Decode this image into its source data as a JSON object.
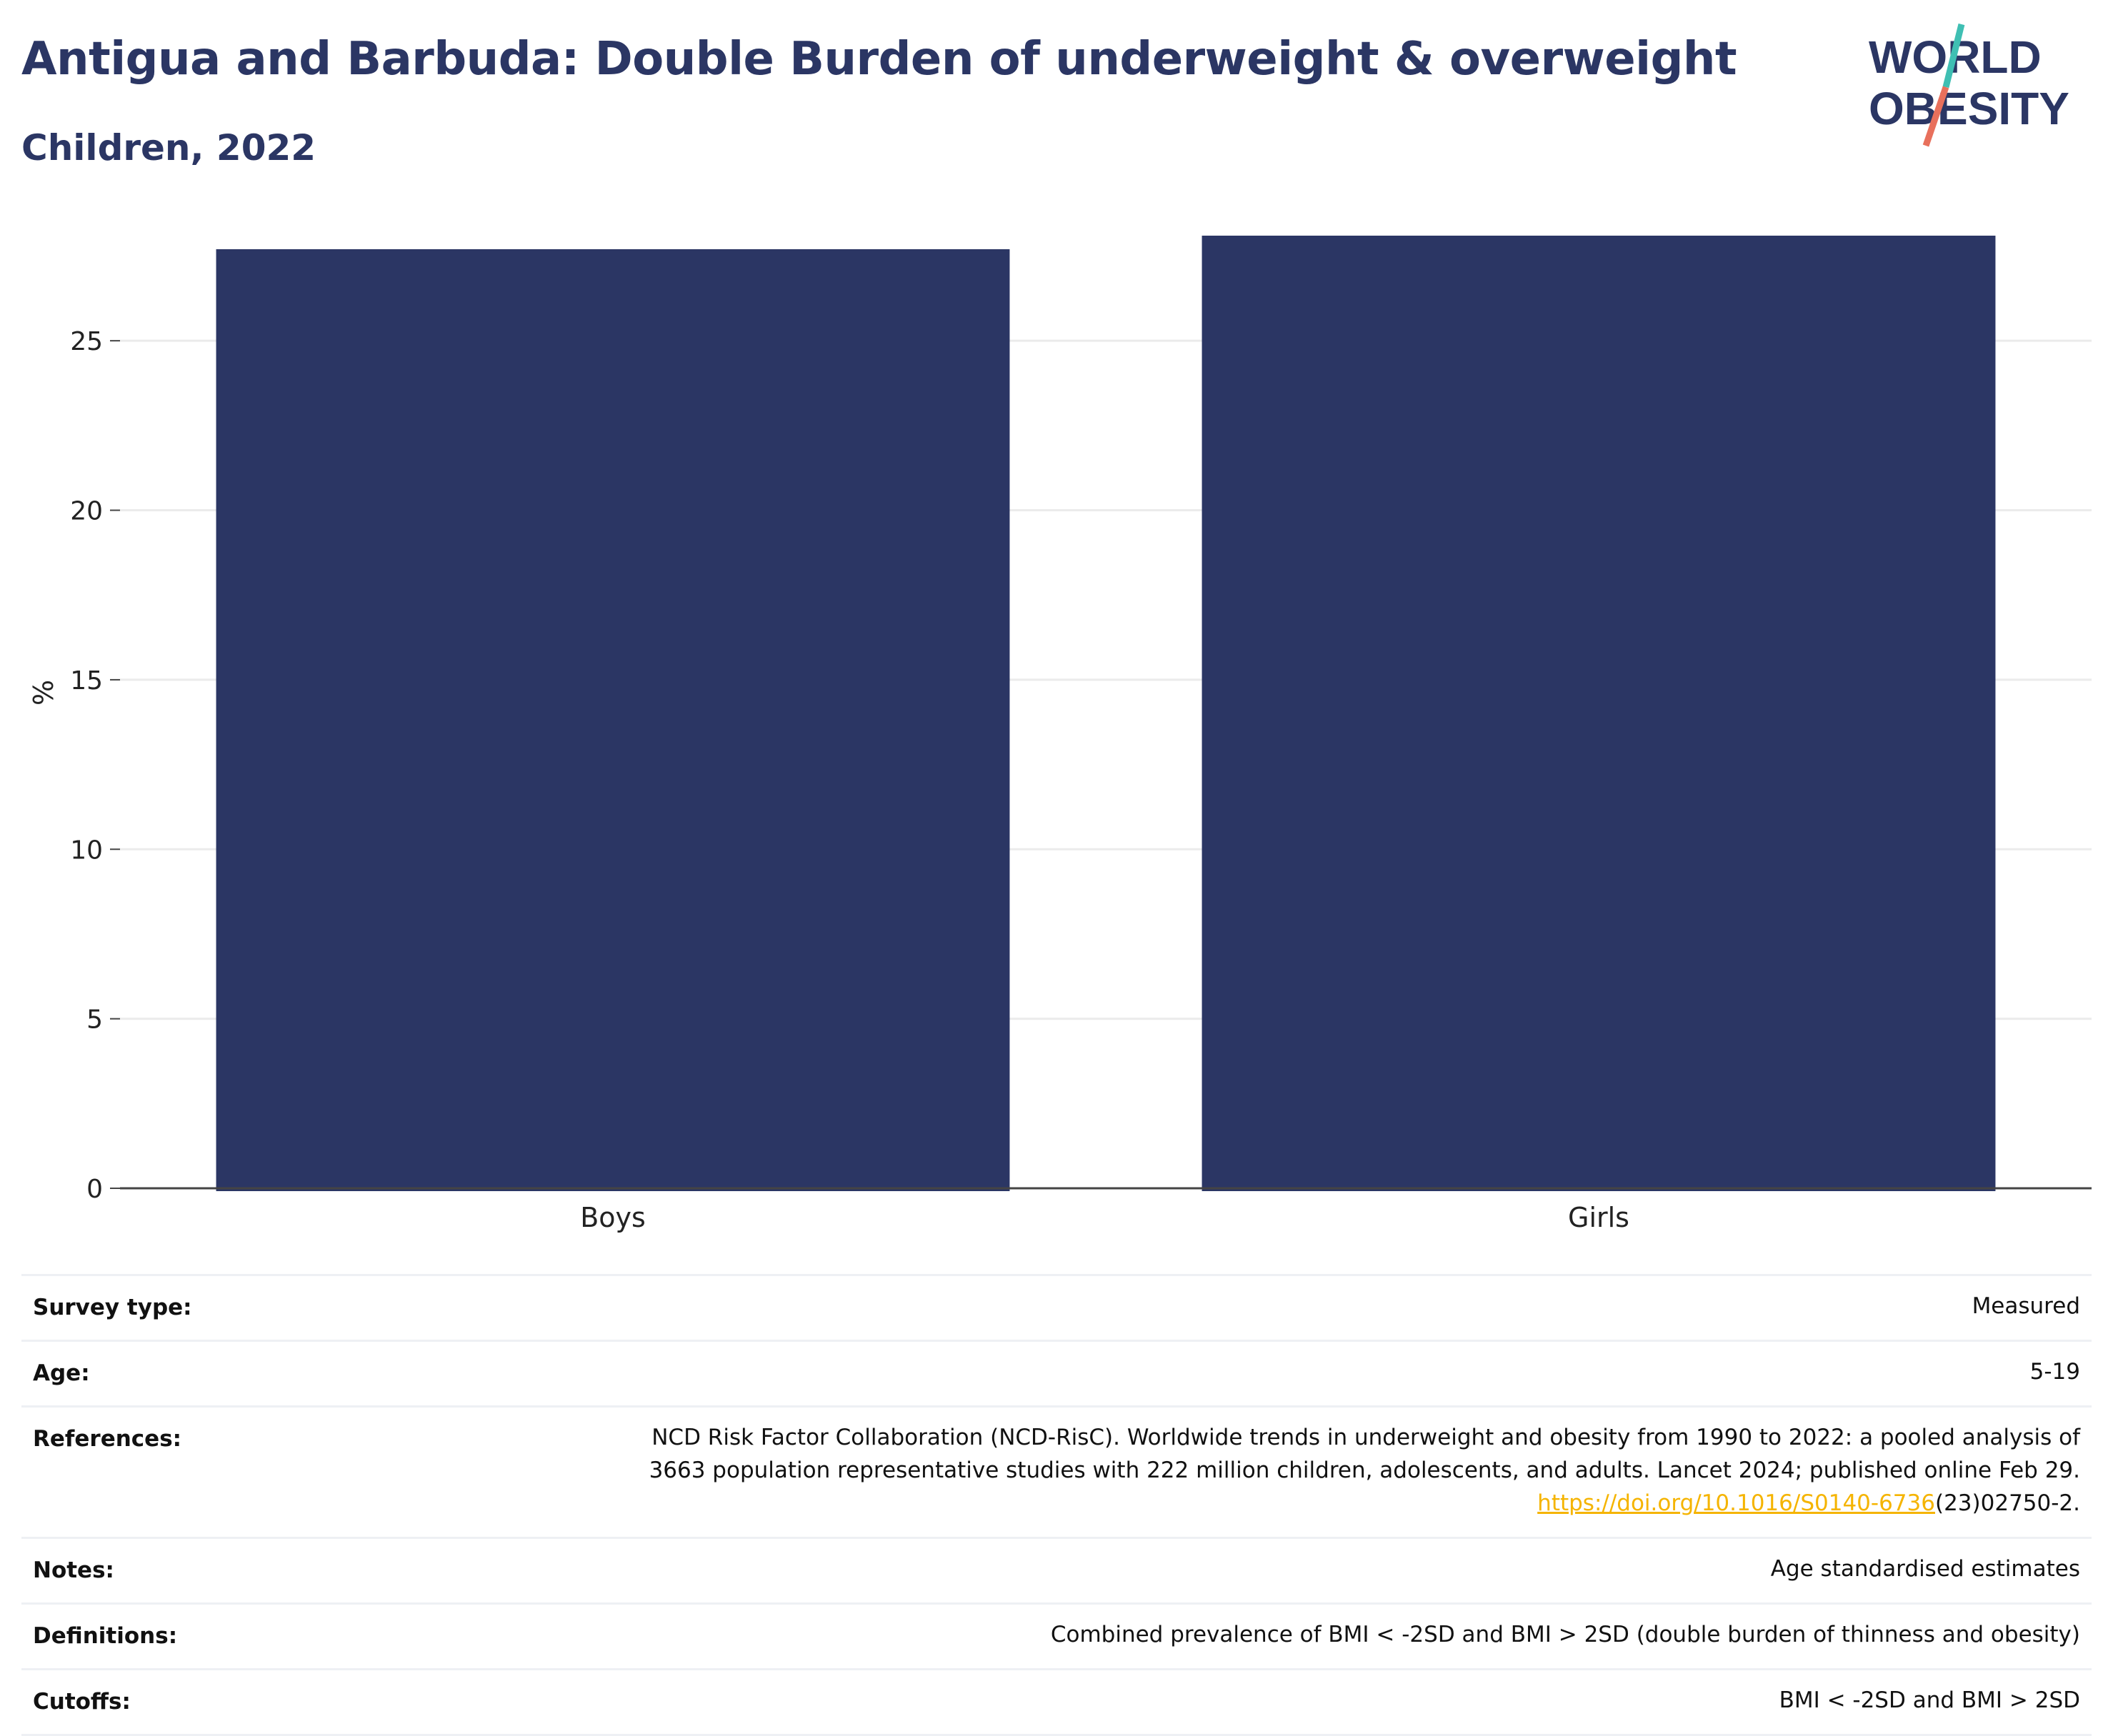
{
  "header": {
    "title": "Antigua and Barbuda: Double Burden of underweight & overweight",
    "subtitle": "Children, 2022"
  },
  "logo": {
    "line1": "WORLD",
    "line2": "OBESITY",
    "colors": {
      "text": "#2b3664",
      "slash_top": "#3fbfb3",
      "slash_bottom": "#e8705c"
    }
  },
  "chart_data": {
    "type": "bar",
    "categories": [
      "Boys",
      "Girls"
    ],
    "values": [
      27.7,
      28.1
    ],
    "title": "Antigua and Barbuda: Double Burden of underweight & overweight",
    "subtitle": "Children, 2022",
    "xlabel": "",
    "ylabel": "%",
    "ylim": [
      0,
      28.1
    ],
    "yticks": [
      0,
      5,
      10,
      15,
      20,
      25
    ],
    "grid": true,
    "legend": "none",
    "bar_color": "#2b3664"
  },
  "info": {
    "survey_type": {
      "label": "Survey type:",
      "value": "Measured"
    },
    "age": {
      "label": "Age:",
      "value": "5-19"
    },
    "references": {
      "label": "References:",
      "line1": "NCD Risk Factor Collaboration (NCD-RisC). Worldwide trends in underweight and obesity from 1990 to 2022: a pooled analysis of",
      "line2": "3663 population representative studies with 222 million children, adolescents, and adults. Lancet 2024; published online Feb 29.",
      "link": "https://doi.org/10.1016/S0140-6736",
      "link_suffix": "(23)02750-2."
    },
    "notes": {
      "label": "Notes:",
      "value": "Age standardised estimates"
    },
    "definitions": {
      "label": "Definitions:",
      "value": "Combined prevalence of BMI < -2SD and BMI > 2SD (double burden of thinness and obesity)"
    },
    "cutoffs": {
      "label": "Cutoffs:",
      "value": "BMI < -2SD and BMI > 2SD"
    }
  }
}
